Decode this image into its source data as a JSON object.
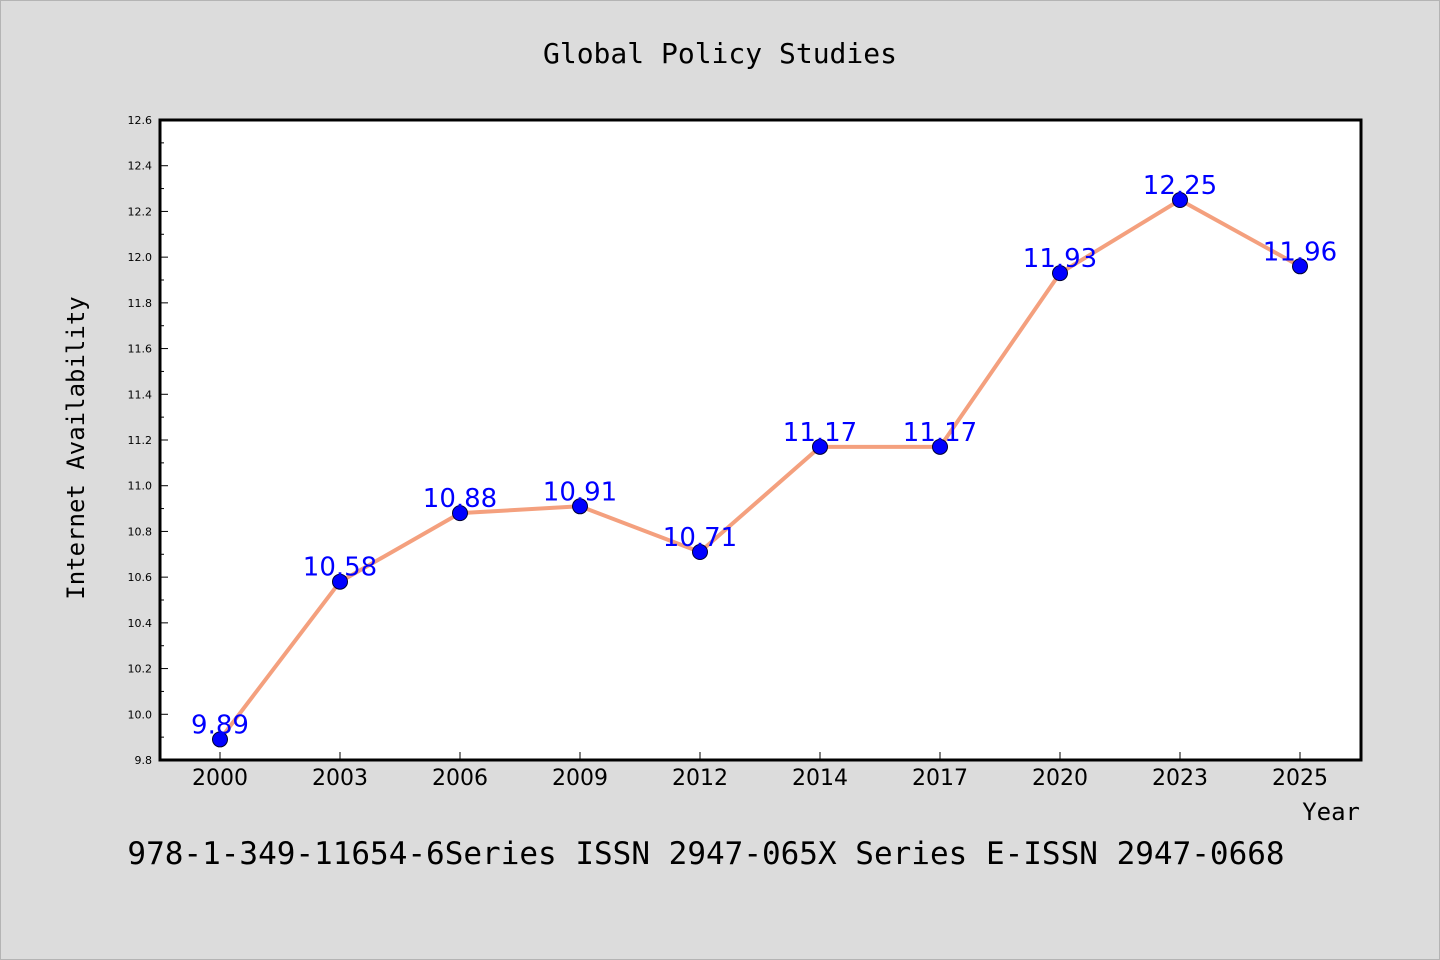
{
  "chart_data": {
    "type": "line",
    "title": "Global Policy Studies",
    "xlabel": "Year",
    "ylabel": "Internet Availability",
    "categories": [
      "2000",
      "2003",
      "2006",
      "2009",
      "2012",
      "2014",
      "2017",
      "2020",
      "2023",
      "2025"
    ],
    "series": [
      {
        "values": [
          9.89,
          10.58,
          10.88,
          10.91,
          10.71,
          11.17,
          11.17,
          11.93,
          12.25,
          11.96
        ],
        "data_labels": [
          "9.89",
          "10.58",
          "10.88",
          "10.91",
          "10.71",
          "11.17",
          "11.17",
          "11.93",
          "12.25",
          "11.96"
        ],
        "line_color": "#f4a07e",
        "marker_color": "#0000ff",
        "label_color": "#0000ff"
      }
    ],
    "ylim": [
      9.8,
      12.6
    ],
    "y_ticks": [
      "9.8",
      "10.0",
      "10.2",
      "10.4",
      "10.6",
      "10.8",
      "11.0",
      "11.2",
      "11.4",
      "11.6",
      "11.8",
      "12.0",
      "12.2",
      "12.4",
      "12.6"
    ],
    "grid": false,
    "legend": "none",
    "footer": "978-1-349-11654-6Series ISSN 2947-065X Series E-ISSN 2947-0668"
  },
  "colors": {
    "background": "#dcdcdc",
    "plot_background": "#ffffff",
    "axis": "#000000"
  }
}
